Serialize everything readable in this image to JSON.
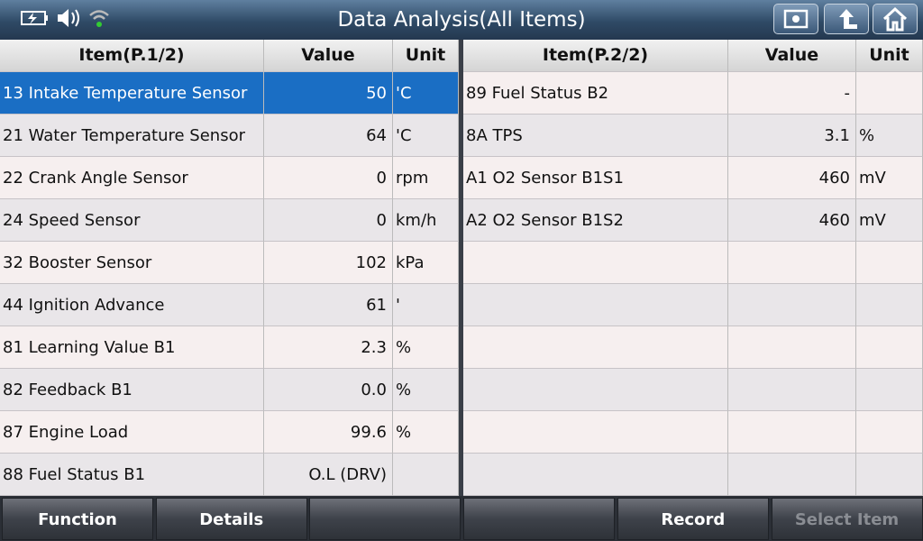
{
  "header": {
    "title": "Data Analysis(All Items)"
  },
  "tables": [
    {
      "columns": [
        "Item(P.1/2)",
        "Value",
        "Unit"
      ],
      "rows": [
        {
          "item": "13 Intake Temperature Sensor",
          "value": "50",
          "unit": "'C"
        },
        {
          "item": "21 Water Temperature Sensor",
          "value": "64",
          "unit": "'C"
        },
        {
          "item": "22 Crank Angle Sensor",
          "value": "0",
          "unit": "rpm"
        },
        {
          "item": "24 Speed Sensor",
          "value": "0",
          "unit": "km/h"
        },
        {
          "item": "32 Booster Sensor",
          "value": "102",
          "unit": "kPa"
        },
        {
          "item": "44 Ignition Advance",
          "value": "61",
          "unit": "'"
        },
        {
          "item": "81 Learning Value B1",
          "value": "2.3",
          "unit": "%"
        },
        {
          "item": "82 Feedback B1",
          "value": "0.0",
          "unit": "%"
        },
        {
          "item": "87 Engine Load",
          "value": "99.6",
          "unit": "%"
        },
        {
          "item": "88 Fuel Status B1",
          "value": "O.L (DRV)"
        }
      ]
    },
    {
      "columns": [
        "Item(P.2/2)",
        "Value",
        "Unit"
      ],
      "rows": [
        {
          "item": "89 Fuel Status B2",
          "value": "-"
        },
        {
          "item": "8A TPS",
          "value": "3.1",
          "unit": "%"
        },
        {
          "item": "A1 O2 Sensor B1S1",
          "value": "460",
          "unit": "mV"
        },
        {
          "item": "A2 O2 Sensor B1S2",
          "value": "460",
          "unit": "mV"
        }
      ]
    }
  ],
  "buttons": [
    {
      "label": "Function",
      "enabled": true
    },
    {
      "label": "Details",
      "enabled": true
    },
    {
      "label": "Record",
      "enabled": true
    },
    {
      "label": "Select Item",
      "enabled": false
    }
  ]
}
